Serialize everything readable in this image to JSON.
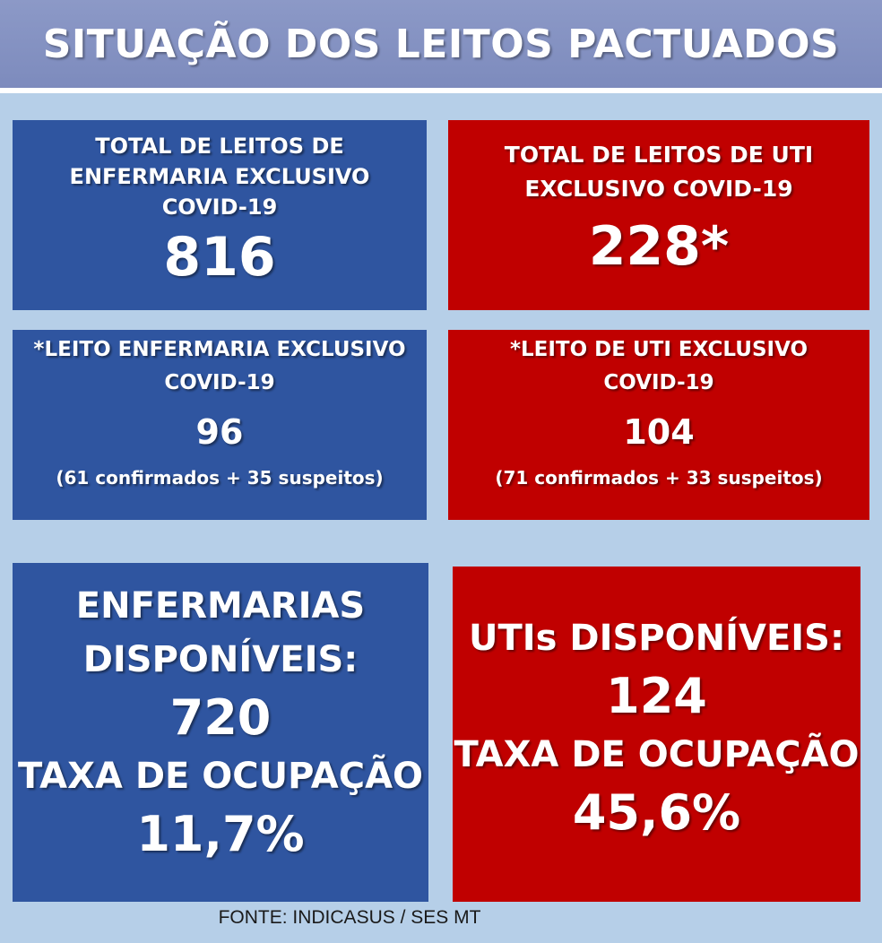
{
  "title": "SITUAÇÃO DOS LEITOS PACTUADOS",
  "cards": {
    "enfermaria_total": {
      "label": "TOTAL DE LEITOS DE\nENFERMARIA  EXCLUSIVO\nCOVID-19",
      "value": "816",
      "color": "#2f55a0"
    },
    "uti_total": {
      "label": "TOTAL DE LEITOS DE UTI\nEXCLUSIVO COVID-19",
      "value": "228*",
      "color": "#c00000"
    },
    "enfermaria_leito": {
      "label": "*LEITO ENFERMARIA EXCLUSIVO\nCOVID-19",
      "value": "96",
      "note": "(61 confirmados + 35 suspeitos)"
    },
    "uti_leito": {
      "label": "*LEITO DE UTI EXCLUSIVO\nCOVID-19",
      "value": "104",
      "note": "(71 confirmados + 33 suspeitos)"
    },
    "enfermarias_disponiveis": {
      "label": "ENFERMARIAS\nDISPONÍVEIS:",
      "value": "720",
      "rate_label": "TAXA DE OCUPAÇÃO",
      "rate_value": "11,7%"
    },
    "utis_disponiveis": {
      "label": "UTIs DISPONÍVEIS:",
      "value": "124",
      "rate_label": "TAXA DE OCUPAÇÃO",
      "rate_value": "45,6%"
    }
  },
  "footer": "FONTE: INDICASUS / SES MT"
}
